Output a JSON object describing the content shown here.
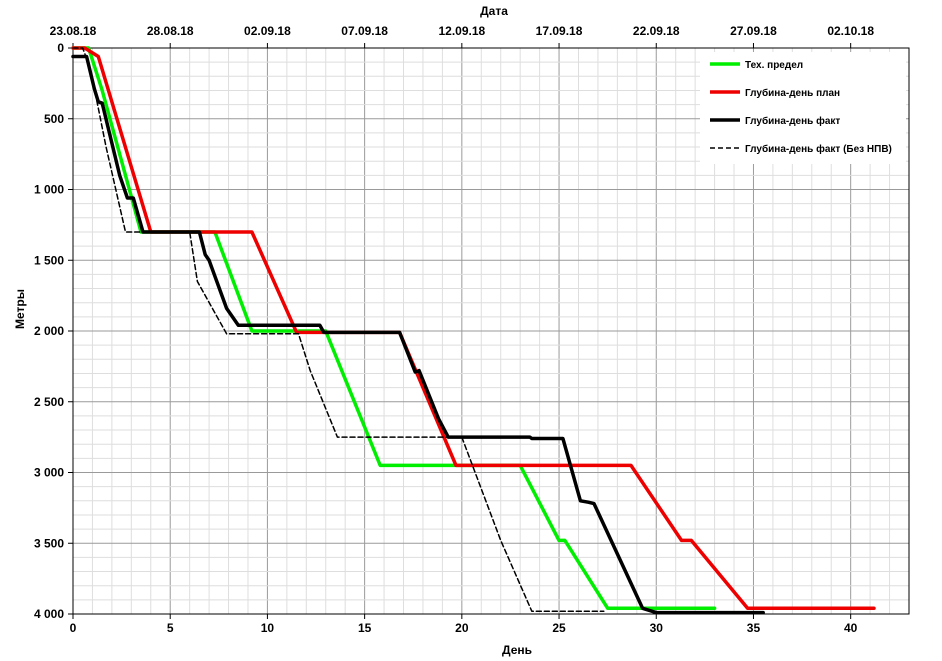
{
  "chart_data": {
    "type": "line",
    "title": "",
    "xlabel": "День",
    "ylabel": "Метры",
    "top_axis_label": "Дата",
    "xlim": [
      0,
      43
    ],
    "ylim": [
      0,
      4000
    ],
    "y_inverted": true,
    "x_ticks": [
      {
        "value": 0,
        "label": "0"
      },
      {
        "value": 5,
        "label": "5"
      },
      {
        "value": 10,
        "label": "10"
      },
      {
        "value": 15,
        "label": "15"
      },
      {
        "value": 20,
        "label": "20"
      },
      {
        "value": 25,
        "label": "25"
      },
      {
        "value": 30,
        "label": "30"
      },
      {
        "value": 35,
        "label": "35"
      },
      {
        "value": 40,
        "label": "40"
      }
    ],
    "y_ticks": [
      {
        "value": 0,
        "label": "0"
      },
      {
        "value": 500,
        "label": "500"
      },
      {
        "value": 1000,
        "label": "1 000"
      },
      {
        "value": 1500,
        "label": "1 500"
      },
      {
        "value": 2000,
        "label": "2 000"
      },
      {
        "value": 2500,
        "label": "2 500"
      },
      {
        "value": 3000,
        "label": "3 000"
      },
      {
        "value": 3500,
        "label": "3 500"
      },
      {
        "value": 4000,
        "label": "4 000"
      }
    ],
    "top_ticks": [
      {
        "value": 0,
        "label": "23.08.18"
      },
      {
        "value": 5,
        "label": "28.08.18"
      },
      {
        "value": 10,
        "label": "02.09.18"
      },
      {
        "value": 15,
        "label": "07.09.18"
      },
      {
        "value": 20,
        "label": "12.09.18"
      },
      {
        "value": 25,
        "label": "17.09.18"
      },
      {
        "value": 30,
        "label": "22.09.18"
      },
      {
        "value": 35,
        "label": "27.09.18"
      },
      {
        "value": 40,
        "label": "02.10.18"
      }
    ],
    "grid": true,
    "legend_position": "top-right",
    "series": [
      {
        "name": "Тех. предел",
        "color": "#00ee00",
        "style": "solid",
        "points": [
          [
            0,
            0
          ],
          [
            0.8,
            0
          ],
          [
            1.5,
            300
          ],
          [
            3.5,
            1300
          ],
          [
            7.3,
            1300
          ],
          [
            9.2,
            2000
          ],
          [
            13,
            2000
          ],
          [
            15.8,
            2950
          ],
          [
            23,
            2950
          ],
          [
            25,
            3480
          ],
          [
            25.3,
            3480
          ],
          [
            27.5,
            3960
          ],
          [
            33,
            3960
          ]
        ]
      },
      {
        "name": "Глубина-день план",
        "color": "#ee0000",
        "style": "solid",
        "points": [
          [
            0,
            0
          ],
          [
            0.6,
            0
          ],
          [
            1.3,
            60
          ],
          [
            4,
            1300
          ],
          [
            9.2,
            1300
          ],
          [
            11.5,
            2010
          ],
          [
            16.8,
            2010
          ],
          [
            19.7,
            2950
          ],
          [
            28.7,
            2950
          ],
          [
            31.3,
            3480
          ],
          [
            31.8,
            3480
          ],
          [
            34.7,
            3960
          ],
          [
            41.2,
            3960
          ]
        ]
      },
      {
        "name": "Глубина-день факт",
        "color": "#000000",
        "style": "solid",
        "points": [
          [
            0,
            60
          ],
          [
            0.7,
            60
          ],
          [
            1.1,
            290
          ],
          [
            1.3,
            380
          ],
          [
            1.5,
            390
          ],
          [
            2.4,
            900
          ],
          [
            2.8,
            1060
          ],
          [
            3.1,
            1060
          ],
          [
            3.6,
            1300
          ],
          [
            6.5,
            1300
          ],
          [
            6.8,
            1460
          ],
          [
            7,
            1500
          ],
          [
            7.9,
            1840
          ],
          [
            8.5,
            1960
          ],
          [
            12.7,
            1960
          ],
          [
            12.9,
            2010
          ],
          [
            16.8,
            2010
          ],
          [
            17.6,
            2290
          ],
          [
            17.8,
            2280
          ],
          [
            18.8,
            2620
          ],
          [
            19.3,
            2750
          ],
          [
            23.5,
            2750
          ],
          [
            23.6,
            2760
          ],
          [
            25.2,
            2760
          ],
          [
            26.1,
            3200
          ],
          [
            26.5,
            3210
          ],
          [
            26.8,
            3220
          ],
          [
            29.3,
            3960
          ],
          [
            30,
            3990
          ],
          [
            35.5,
            3990
          ]
        ]
      },
      {
        "name": "Глубина-день факт (Без НПВ)",
        "color": "#000000",
        "style": "dashed",
        "points": [
          [
            0,
            0
          ],
          [
            0.5,
            0
          ],
          [
            0.9,
            150
          ],
          [
            1.7,
            700
          ],
          [
            2.7,
            1300
          ],
          [
            6,
            1300
          ],
          [
            6.4,
            1650
          ],
          [
            7.9,
            2020
          ],
          [
            11.6,
            2020
          ],
          [
            12.2,
            2280
          ],
          [
            13.6,
            2750
          ],
          [
            20,
            2750
          ],
          [
            22,
            3480
          ],
          [
            23.6,
            3980
          ],
          [
            27.3,
            3980
          ]
        ]
      }
    ]
  }
}
